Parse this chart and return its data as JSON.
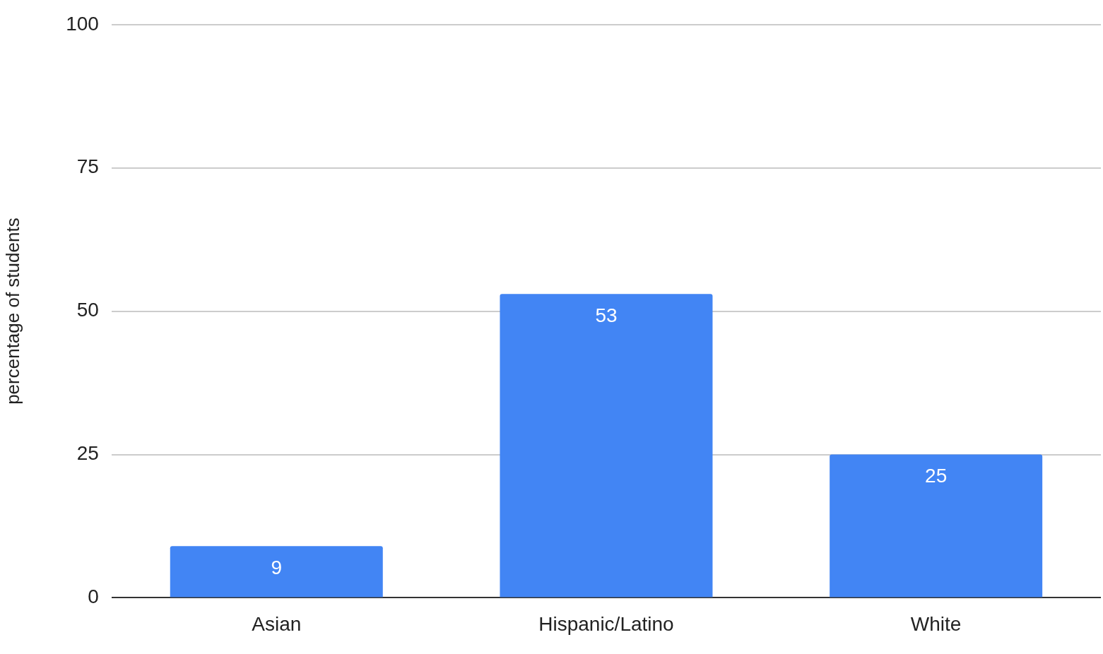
{
  "chart_data": {
    "type": "bar",
    "ylabel": "percentage of students",
    "categories": [
      "Asian",
      "Hispanic/Latino",
      "White"
    ],
    "values": [
      9,
      53,
      25
    ],
    "color": "#4285f4",
    "ylim": [
      0,
      100
    ],
    "yticks": [
      0,
      25,
      50,
      75,
      100
    ],
    "grid": "y",
    "legend": false,
    "data_labels": true
  }
}
